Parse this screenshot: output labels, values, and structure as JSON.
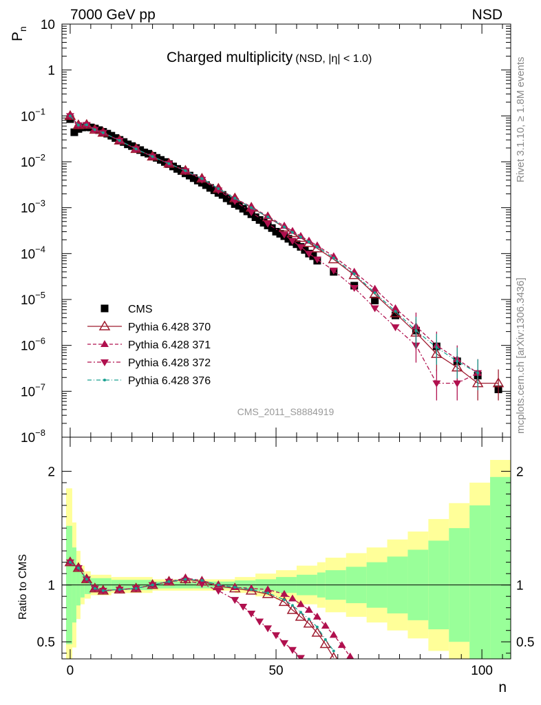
{
  "header": {
    "energy": "7000 GeV pp",
    "process": "NSD"
  },
  "side_labels": {
    "rivet": "Rivet 3.1.10, ≥ 1.8M events",
    "mcplots": "mcplots.cern.ch [arXiv:1306.3436]"
  },
  "watermark": "CMS_2011_S8884919",
  "colors": {
    "cms": "#000000",
    "p370": "#9e1a2e",
    "p371": "#b0104e",
    "p372": "#b0104e",
    "p376": "#1aa090",
    "band_stat": "#99ff99",
    "band_total": "#ffff99"
  },
  "chart_data": [
    {
      "type": "scatter",
      "panel": "main",
      "title": "Charged multiplicity",
      "title_suffix": "(NSD, |η| < 1.0)",
      "ylabel": "P",
      "ylabel_sub": "n",
      "yscale": "log",
      "ylim": [
        1e-08,
        10
      ],
      "xlim": [
        -2,
        107
      ],
      "ytick_labels": [
        {
          "v": 10,
          "base": "10",
          "exp": ""
        },
        {
          "v": 1,
          "base": "1",
          "exp": ""
        },
        {
          "v": 0.1,
          "base": "10",
          "exp": "−1"
        },
        {
          "v": 0.01,
          "base": "10",
          "exp": "−2"
        },
        {
          "v": 0.001,
          "base": "10",
          "exp": "−3"
        },
        {
          "v": 0.0001,
          "base": "10",
          "exp": "−4"
        },
        {
          "v": 1e-05,
          "base": "10",
          "exp": "−5"
        },
        {
          "v": 1e-06,
          "base": "10",
          "exp": "−6"
        },
        {
          "v": 1e-07,
          "base": "10",
          "exp": "−7"
        },
        {
          "v": 1e-08,
          "base": "10",
          "exp": "−8"
        }
      ],
      "legend": [
        "CMS",
        "Pythia 6.428 370",
        "Pythia 6.428 371",
        "Pythia 6.428 372",
        "Pythia 6.428 376"
      ],
      "series": [
        {
          "name": "CMS",
          "x": [
            0,
            1,
            2,
            3,
            4,
            5,
            6,
            7,
            8,
            9,
            10,
            11,
            12,
            13,
            14,
            15,
            16,
            17,
            18,
            19,
            20,
            21,
            22,
            23,
            24,
            25,
            26,
            27,
            28,
            29,
            30,
            31,
            32,
            33,
            34,
            35,
            36,
            37,
            38,
            39,
            40,
            41,
            42,
            43,
            44,
            45,
            46,
            47,
            48,
            49,
            50,
            51,
            52,
            53,
            54,
            55,
            56,
            57,
            58,
            59,
            60,
            64,
            69,
            74,
            79,
            84,
            89,
            94,
            99,
            104
          ],
          "y": [
            0.085,
            0.044,
            0.052,
            0.056,
            0.057,
            0.056,
            0.053,
            0.049,
            0.045,
            0.041,
            0.037,
            0.033,
            0.03,
            0.027,
            0.024,
            0.022,
            0.02,
            0.018,
            0.016,
            0.015,
            0.0135,
            0.0122,
            0.011,
            0.0099,
            0.0089,
            0.0079,
            0.007,
            0.0063,
            0.0056,
            0.005,
            0.0044,
            0.0039,
            0.0035,
            0.0031,
            0.0027,
            0.0024,
            0.0021,
            0.0019,
            0.0016,
            0.0014,
            0.0012,
            0.0011,
            0.00095,
            0.00083,
            0.00072,
            0.00062,
            0.00054,
            0.00047,
            0.00041,
            0.00036,
            0.0003,
            0.00027,
            0.00024,
            0.00021,
            0.00018,
            0.00016,
            0.00014,
            0.00012,
            0.0001,
            8.8e-05,
            7e-05,
            4e-05,
            2e-05,
            9.5e-06,
            4.5e-06,
            2.1e-06,
            9.5e-07,
            4.5e-07,
            2.2e-07,
            1.1e-07
          ]
        },
        {
          "name": "Pythia 6.428 370",
          "x": [
            0,
            2,
            4,
            6,
            8,
            12,
            16,
            20,
            24,
            28,
            32,
            36,
            40,
            44,
            48,
            52,
            54,
            56,
            58,
            60,
            64,
            69,
            74,
            79,
            84,
            89,
            94,
            99,
            104
          ],
          "y": [
            0.1,
            0.063,
            0.064,
            0.05,
            0.043,
            0.029,
            0.019,
            0.013,
            0.0091,
            0.0064,
            0.0043,
            0.0026,
            0.0016,
            0.001,
            0.00062,
            0.00037,
            0.00028,
            0.00022,
            0.00017,
            0.00013,
            7.5e-05,
            3.4e-05,
            1.3e-05,
            5e-06,
            1.9e-06,
            6.5e-07,
            3.3e-07,
            1.5e-07,
            1.5e-07
          ]
        },
        {
          "name": "Pythia 6.428 371",
          "x": [
            0,
            2,
            4,
            6,
            8,
            12,
            16,
            20,
            24,
            28,
            32,
            36,
            40,
            44,
            48,
            52,
            54,
            56,
            58,
            60,
            64,
            69,
            74,
            79,
            84,
            89,
            94,
            99
          ],
          "y": [
            0.1,
            0.063,
            0.064,
            0.05,
            0.043,
            0.029,
            0.019,
            0.013,
            0.0091,
            0.0064,
            0.0043,
            0.0026,
            0.0016,
            0.00105,
            0.00065,
            0.0004,
            0.00031,
            0.00024,
            0.00019,
            0.00015,
            8.7e-05,
            4e-05,
            1.7e-05,
            6.4e-06,
            2.6e-06,
            1e-06,
            5e-07,
            2.5e-07
          ]
        },
        {
          "name": "Pythia 6.428 372",
          "x": [
            0,
            2,
            4,
            6,
            8,
            12,
            16,
            20,
            24,
            28,
            32,
            36,
            40,
            44,
            48,
            52,
            54,
            56,
            58,
            60,
            64,
            69,
            74,
            79,
            84,
            89,
            94,
            99
          ],
          "y": [
            0.1,
            0.063,
            0.064,
            0.05,
            0.043,
            0.029,
            0.019,
            0.013,
            0.0091,
            0.0063,
            0.0041,
            0.0024,
            0.0014,
            0.0008,
            0.00045,
            0.00026,
            0.00019,
            0.00014,
            0.0001,
            7.5e-05,
            4.3e-05,
            1.8e-05,
            6.5e-06,
            2.5e-06,
            1e-06,
            1.5e-07,
            1.5e-07,
            2.5e-07
          ]
        },
        {
          "name": "Pythia 6.428 376",
          "x": [
            0,
            2,
            4,
            6,
            8,
            12,
            16,
            20,
            24,
            28,
            32,
            36,
            40,
            44,
            48,
            52,
            54,
            56,
            58,
            60,
            64,
            69,
            74,
            79,
            84,
            89,
            94,
            99
          ],
          "y": [
            0.1,
            0.063,
            0.064,
            0.05,
            0.043,
            0.029,
            0.019,
            0.013,
            0.0091,
            0.0064,
            0.0043,
            0.0026,
            0.0016,
            0.001,
            0.00063,
            0.00038,
            0.00029,
            0.00023,
            0.00018,
            0.00014,
            8e-05,
            3.6e-05,
            1.4e-05,
            5.5e-06,
            2.1e-06,
            9e-07,
            4.5e-07,
            2.5e-07
          ]
        }
      ]
    },
    {
      "type": "line",
      "panel": "ratio",
      "ylabel": "Ratio to CMS",
      "xlabel": "n",
      "ylim": [
        0.35,
        2.3
      ],
      "ytick_labels": [
        {
          "v": 0.5,
          "label": "0.5"
        },
        {
          "v": 1,
          "label": "1"
        },
        {
          "v": 2,
          "label": "2"
        }
      ],
      "xtick_labels": [
        {
          "v": 0,
          "label": "0"
        },
        {
          "v": 50,
          "label": "50"
        },
        {
          "v": 100,
          "label": "100"
        }
      ],
      "bands": {
        "x_edges": [
          -1,
          0.5,
          1.5,
          2.5,
          3.5,
          5,
          10,
          20,
          30,
          40,
          45,
          50,
          55,
          60,
          62,
          67,
          72,
          77,
          82,
          87,
          92,
          97,
          102,
          107
        ],
        "total_halfwidth": [
          0.85,
          0.55,
          0.3,
          0.17,
          0.12,
          0.09,
          0.07,
          0.05,
          0.05,
          0.07,
          0.1,
          0.13,
          0.17,
          0.2,
          0.24,
          0.28,
          0.33,
          0.4,
          0.47,
          0.58,
          0.72,
          0.9,
          1.1
        ],
        "stat_halfwidth": [
          0.52,
          0.33,
          0.18,
          0.11,
          0.08,
          0.06,
          0.045,
          0.03,
          0.03,
          0.04,
          0.05,
          0.07,
          0.09,
          0.11,
          0.13,
          0.16,
          0.2,
          0.25,
          0.31,
          0.39,
          0.5,
          0.7,
          0.95
        ]
      },
      "series": [
        {
          "name": "Pythia 6.428 370",
          "x": [
            0,
            2,
            4,
            6,
            8,
            12,
            16,
            20,
            24,
            28,
            32,
            36,
            40,
            44,
            48,
            52,
            54,
            56,
            58,
            60,
            62,
            64
          ],
          "y": [
            1.2,
            1.15,
            1.05,
            0.97,
            0.95,
            0.96,
            0.97,
            1.0,
            1.03,
            1.05,
            1.03,
            0.99,
            0.97,
            0.95,
            0.92,
            0.85,
            0.78,
            0.72,
            0.66,
            0.58,
            0.48,
            0.36
          ]
        },
        {
          "name": "Pythia 6.428 371",
          "x": [
            0,
            2,
            4,
            6,
            8,
            12,
            16,
            20,
            24,
            28,
            32,
            36,
            40,
            44,
            48,
            52,
            54,
            56,
            58,
            60,
            62,
            64,
            66,
            68
          ],
          "y": [
            1.2,
            1.15,
            1.05,
            0.97,
            0.95,
            0.96,
            0.97,
            1.0,
            1.03,
            1.06,
            1.04,
            1.0,
            0.98,
            0.97,
            0.96,
            0.92,
            0.88,
            0.83,
            0.78,
            0.72,
            0.64,
            0.56,
            0.47,
            0.37
          ]
        },
        {
          "name": "Pythia 6.428 372",
          "x": [
            0,
            2,
            4,
            6,
            8,
            12,
            16,
            20,
            24,
            28,
            32,
            36,
            40,
            42,
            44,
            46,
            48,
            50,
            52,
            54,
            56
          ],
          "y": [
            1.2,
            1.15,
            1.05,
            0.97,
            0.95,
            0.96,
            0.97,
            1.0,
            1.03,
            1.04,
            1.01,
            0.95,
            0.87,
            0.81,
            0.75,
            0.68,
            0.62,
            0.56,
            0.49,
            0.43,
            0.36
          ]
        },
        {
          "name": "Pythia 6.428 376",
          "x": [
            0,
            2,
            4,
            6,
            8,
            12,
            16,
            20,
            24,
            28,
            32,
            36,
            40,
            44,
            48,
            52,
            54,
            56,
            58,
            60,
            62,
            64
          ],
          "y": [
            1.2,
            1.15,
            1.05,
            0.97,
            0.95,
            0.96,
            0.97,
            1.0,
            1.03,
            1.05,
            1.04,
            1.0,
            0.98,
            0.96,
            0.93,
            0.87,
            0.82,
            0.76,
            0.7,
            0.63,
            0.52,
            0.42
          ]
        }
      ]
    }
  ]
}
